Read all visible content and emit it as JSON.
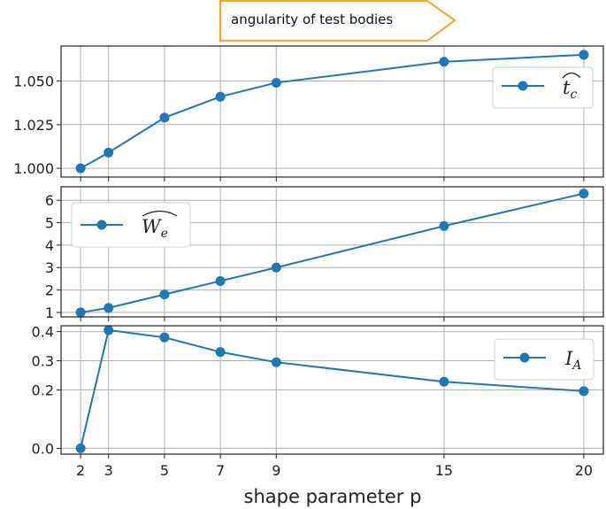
{
  "annotation": {
    "text": "angularity of test bodies",
    "border_color": "#f5a623"
  },
  "xlabel": "shape parameter p",
  "x_ticks": [
    2,
    3,
    5,
    7,
    9,
    15,
    20
  ],
  "colors": {
    "series": "#1f77b4",
    "grid": "#b0b0b0",
    "axes": "#222222"
  },
  "chart_data": [
    {
      "type": "line",
      "x": [
        2,
        3,
        5,
        7,
        9,
        15,
        20
      ],
      "series": [
        {
          "name": "t_c (hat)",
          "values": [
            1.0,
            1.009,
            1.029,
            1.041,
            1.049,
            1.061,
            1.065
          ]
        }
      ],
      "ylim": [
        0.995,
        1.07
      ],
      "y_ticks": [
        1.0,
        1.025,
        1.05
      ],
      "y_tick_labels": [
        "1.000",
        "1.025",
        "1.050"
      ],
      "legend": {
        "main": "t",
        "sub": "c",
        "hat": "wide",
        "placement": "right"
      },
      "grid": true
    },
    {
      "type": "line",
      "x": [
        2,
        3,
        5,
        7,
        9,
        15,
        20
      ],
      "series": [
        {
          "name": "W_e (hat)",
          "values": [
            1.0,
            1.2,
            1.8,
            2.4,
            3.0,
            4.85,
            6.3
          ]
        }
      ],
      "ylim": [
        0.8,
        6.6
      ],
      "y_ticks": [
        1,
        2,
        3,
        4,
        5,
        6
      ],
      "y_tick_labels": [
        "1",
        "2",
        "3",
        "4",
        "5",
        "6"
      ],
      "legend": {
        "main": "W",
        "sub": "e",
        "hat": "wide",
        "placement": "upper left"
      },
      "grid": true
    },
    {
      "type": "line",
      "x": [
        2,
        3,
        5,
        7,
        9,
        15,
        20
      ],
      "series": [
        {
          "name": "I_A",
          "values": [
            0.0,
            0.405,
            0.38,
            0.33,
            0.295,
            0.228,
            0.196
          ]
        }
      ],
      "ylim": [
        -0.02,
        0.42
      ],
      "y_ticks": [
        0.0,
        0.2,
        0.3,
        0.4
      ],
      "y_tick_labels": [
        "0.0",
        "0.2",
        "0.3",
        "0.4"
      ],
      "legend": {
        "main": "I",
        "sub": "A",
        "hat": "none",
        "placement": "upper right"
      },
      "grid": true
    }
  ]
}
